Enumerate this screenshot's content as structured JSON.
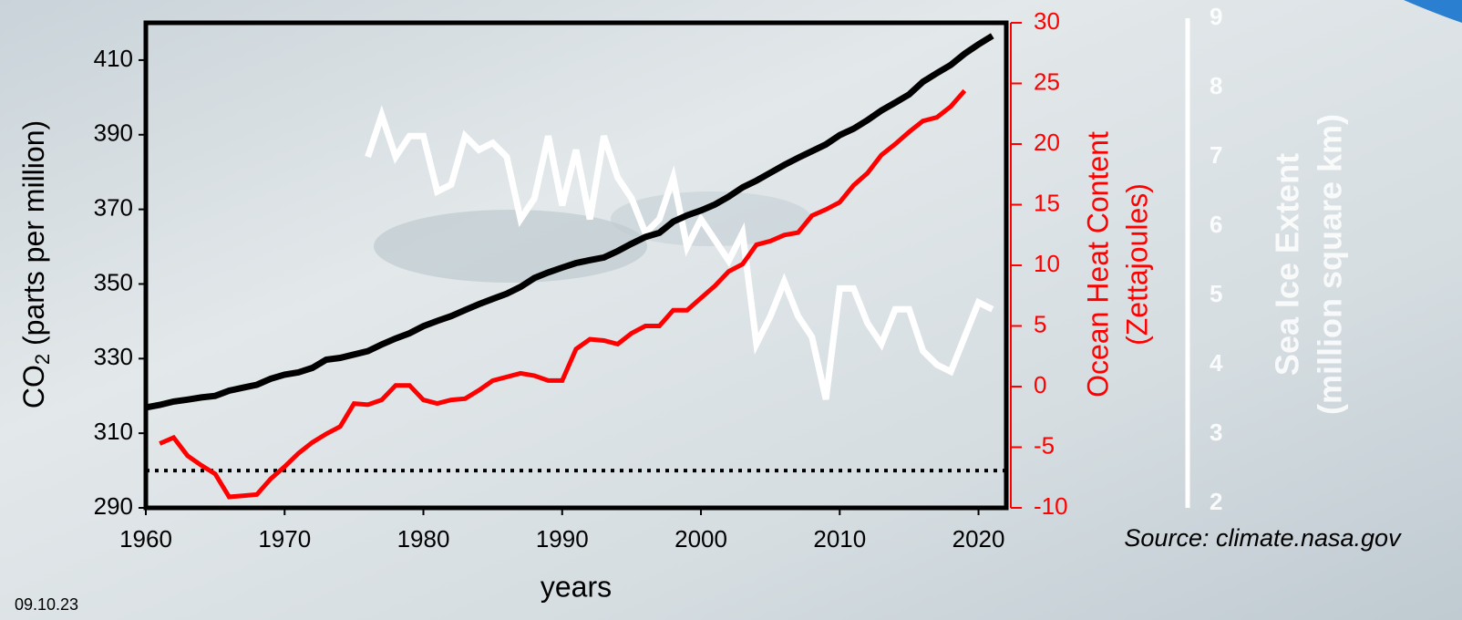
{
  "chart_data": {
    "type": "line",
    "x_label": "years",
    "y_label": [
      "CO",
      "2",
      " (parts per million)"
    ],
    "y2_label": [
      "Ocean Heat Content",
      "(Zettajoules)"
    ],
    "y3_label": [
      "Sea Ice Extent",
      "(million square km)"
    ],
    "xlim": [
      1960,
      2022
    ],
    "xticks": [
      1960,
      1970,
      1980,
      1990,
      2000,
      2010,
      2020
    ],
    "ylim": [
      290,
      420
    ],
    "yticks": [
      290,
      310,
      330,
      350,
      370,
      390,
      410
    ],
    "y2lim": [
      -10,
      30
    ],
    "y2ticks": [
      -10,
      -5,
      0,
      5,
      10,
      15,
      20,
      25,
      30
    ],
    "y2_color": "#ff0000",
    "y3lim": [
      2,
      9
    ],
    "y3ticks": [
      2,
      3,
      4,
      5,
      6,
      7,
      8,
      9
    ],
    "y3_color": "#ffffff",
    "reference_line": 300,
    "series": [
      {
        "color": "#000000",
        "axis": "y",
        "x": [
          1960,
          1961,
          1962,
          1963,
          1964,
          1965,
          1966,
          1967,
          1968,
          1969,
          1970,
          1971,
          1972,
          1973,
          1974,
          1975,
          1976,
          1977,
          1978,
          1979,
          1980,
          1981,
          1982,
          1983,
          1984,
          1985,
          1986,
          1987,
          1988,
          1989,
          1990,
          1991,
          1992,
          1993,
          1994,
          1995,
          1996,
          1997,
          1998,
          1999,
          2000,
          2001,
          2002,
          2003,
          2004,
          2005,
          2006,
          2007,
          2008,
          2009,
          2010,
          2011,
          2012,
          2013,
          2014,
          2015,
          2016,
          2017,
          2018,
          2019,
          2020,
          2021
        ],
        "values": [
          316.9,
          317.6,
          318.5,
          319.0,
          319.6,
          320.0,
          321.4,
          322.2,
          323.0,
          324.6,
          325.7,
          326.3,
          327.5,
          329.7,
          330.2,
          331.1,
          332.0,
          333.8,
          335.4,
          336.8,
          338.7,
          340.1,
          341.4,
          343.0,
          344.6,
          346.0,
          347.4,
          349.2,
          351.6,
          353.1,
          354.4,
          355.6,
          356.4,
          357.1,
          358.8,
          360.8,
          362.6,
          363.7,
          366.7,
          368.4,
          369.7,
          371.3,
          373.4,
          375.9,
          377.7,
          379.8,
          381.9,
          383.8,
          385.6,
          387.4,
          389.9,
          391.6,
          393.9,
          396.5,
          398.6,
          400.8,
          404.2,
          406.5,
          408.7,
          411.7,
          414.2,
          416.5
        ]
      },
      {
        "color": "#ff0000",
        "axis": "y2",
        "x": [
          1961,
          1962,
          1963,
          1964,
          1965,
          1966,
          1967,
          1968,
          1969,
          1970,
          1971,
          1972,
          1973,
          1974,
          1975,
          1976,
          1977,
          1978,
          1979,
          1980,
          1981,
          1982,
          1983,
          1984,
          1985,
          1986,
          1987,
          1988,
          1989,
          1990,
          1991,
          1992,
          1993,
          1994,
          1995,
          1996,
          1997,
          1998,
          1999,
          2000,
          2001,
          2002,
          2003,
          2004,
          2005,
          2006,
          2007,
          2008,
          2009,
          2010,
          2011,
          2012,
          2013,
          2014,
          2015,
          2016,
          2017,
          2018,
          2019
        ],
        "values": [
          -4.7,
          -4.2,
          -5.7,
          -6.5,
          -7.2,
          -9.1,
          -9.0,
          -8.9,
          -7.6,
          -6.6,
          -5.5,
          -4.6,
          -3.9,
          -3.3,
          -1.4,
          -1.5,
          -1.1,
          0.1,
          0.1,
          -1.1,
          -1.4,
          -1.1,
          -1.0,
          -0.3,
          0.5,
          0.8,
          1.1,
          0.9,
          0.5,
          0.5,
          3.1,
          3.9,
          3.8,
          3.5,
          4.4,
          5.0,
          5.0,
          6.3,
          6.3,
          7.3,
          8.3,
          9.5,
          10.1,
          11.7,
          12.0,
          12.5,
          12.7,
          14.1,
          14.6,
          15.2,
          16.6,
          17.6,
          19.1,
          20.0,
          21.0,
          21.9,
          22.2,
          23.1,
          24.4
        ]
      },
      {
        "color": "#ffffff",
        "axis": "y3",
        "x": [
          1976,
          1977,
          1978,
          1979,
          1980,
          1981,
          1982,
          1983,
          1984,
          1985,
          1986,
          1987,
          1988,
          1989,
          1990,
          1991,
          1992,
          1993,
          1994,
          1995,
          1996,
          1997,
          1998,
          1999,
          2000,
          2001,
          2002,
          2003,
          2004,
          2005,
          2006,
          2007,
          2008,
          2009,
          2010,
          2011,
          2012,
          2013,
          2014,
          2015,
          2016,
          2017,
          2018,
          2019,
          2020,
          2021
        ],
        "values": [
          7.0,
          7.6,
          7.0,
          7.3,
          7.3,
          6.5,
          6.6,
          7.3,
          7.1,
          7.2,
          7.0,
          6.1,
          6.4,
          7.3,
          6.3,
          7.1,
          6.1,
          7.3,
          6.7,
          6.4,
          5.9,
          6.1,
          6.7,
          5.7,
          6.1,
          5.8,
          5.5,
          5.9,
          4.3,
          4.7,
          5.2,
          4.7,
          4.4,
          3.5,
          5.1,
          5.1,
          4.6,
          4.3,
          4.8,
          4.8,
          4.2,
          4.0,
          3.9,
          4.4,
          4.9,
          4.8
        ]
      }
    ]
  },
  "footer": {
    "source": "Source: climate.nasa.gov",
    "date": "09.10.23"
  }
}
